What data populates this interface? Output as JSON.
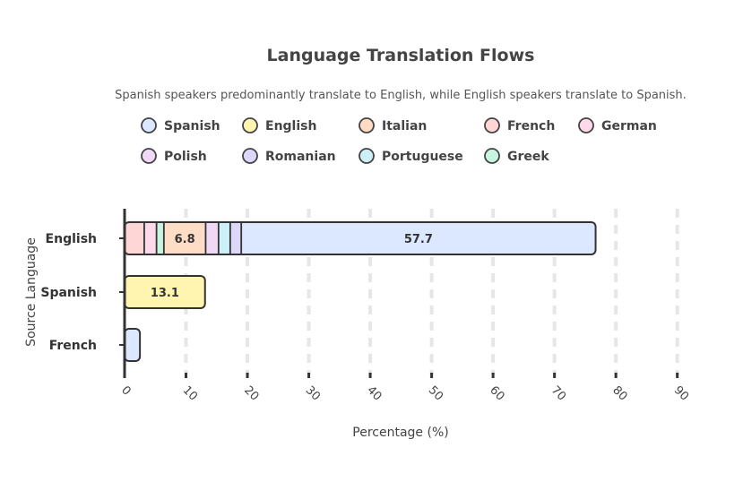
{
  "chart_data": {
    "type": "bar",
    "orientation": "horizontal",
    "stacked": true,
    "title": "Language Translation Flows",
    "subtitle": "Spanish speakers predominantly translate to English, while English speakers translate to Spanish.",
    "xlabel": "Percentage (%)",
    "ylabel": "Source Language",
    "xlim": [
      0,
      90
    ],
    "xticks": [
      0,
      10,
      20,
      30,
      40,
      50,
      60,
      70,
      80,
      90
    ],
    "grid": "vertical dashed",
    "legend_position": "top",
    "categories": [
      "English",
      "Spanish",
      "French"
    ],
    "series": [
      {
        "name": "French",
        "color": "#ffd6d6",
        "values": [
          3.2,
          0,
          0
        ]
      },
      {
        "name": "German",
        "color": "#ffd9ea",
        "values": [
          2.0,
          0,
          0
        ]
      },
      {
        "name": "Greek",
        "color": "#c8f5e2",
        "values": [
          1.2,
          0,
          0
        ]
      },
      {
        "name": "Italian",
        "color": "#ffdcc6",
        "values": [
          6.8,
          0,
          0
        ]
      },
      {
        "name": "Polish",
        "color": "#f0d8f7",
        "values": [
          2.1,
          0,
          0
        ]
      },
      {
        "name": "Portuguese",
        "color": "#cdf0f8",
        "values": [
          1.9,
          0,
          0
        ]
      },
      {
        "name": "Romanian",
        "color": "#ddd8fa",
        "values": [
          1.8,
          0,
          0
        ]
      },
      {
        "name": "Spanish",
        "color": "#dce8ff",
        "values": [
          57.7,
          0,
          2.5
        ]
      },
      {
        "name": "English",
        "color": "#fff4b0",
        "values": [
          0,
          13.1,
          0
        ]
      }
    ],
    "data_labels": [
      {
        "category": "English",
        "series": "Italian",
        "text": "6.8"
      },
      {
        "category": "English",
        "series": "Spanish",
        "text": "57.7"
      },
      {
        "category": "Spanish",
        "series": "English",
        "text": "13.1"
      }
    ],
    "legend": [
      {
        "name": "Spanish",
        "color": "#dce8ff"
      },
      {
        "name": "English",
        "color": "#fff4b0"
      },
      {
        "name": "Italian",
        "color": "#ffdcc6"
      },
      {
        "name": "French",
        "color": "#ffd6d6"
      },
      {
        "name": "German",
        "color": "#ffd9ea"
      },
      {
        "name": "Polish",
        "color": "#f0d8f7"
      },
      {
        "name": "Romanian",
        "color": "#ddd8fa"
      },
      {
        "name": "Portuguese",
        "color": "#cdf0f8"
      },
      {
        "name": "Greek",
        "color": "#c8f5e2"
      }
    ]
  }
}
